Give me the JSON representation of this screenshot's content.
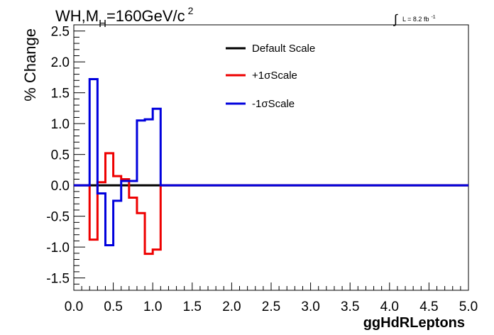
{
  "chart_data": {
    "type": "line",
    "title_main": "WH,M",
    "title_sub": "H",
    "title_rest": "=160GeV/c",
    "title_sup": "2",
    "lumi_main": "L = 8.2 fb",
    "lumi_sup": "-1",
    "xlabel": "ggHdRLeptons",
    "ylabel": "% Change",
    "xlim": [
      0.0,
      5.0
    ],
    "ylim": [
      -1.7,
      2.6
    ],
    "xticks": [
      "0.0",
      "0.5",
      "1.0",
      "1.5",
      "2.0",
      "2.5",
      "3.0",
      "3.5",
      "4.0",
      "4.5",
      "5.0"
    ],
    "yticks": [
      "-1.5",
      "-1.0",
      "-0.5",
      "0.0",
      "0.5",
      "1.0",
      "1.5",
      "2.0",
      "2.5"
    ],
    "bin_edges": [
      0.0,
      0.1,
      0.2,
      0.3,
      0.4,
      0.5,
      0.6,
      0.7,
      0.8,
      0.9,
      1.0,
      1.1,
      1.2,
      1.3,
      1.4,
      1.5,
      1.6,
      1.7,
      1.8,
      1.9,
      2.0,
      2.1,
      2.2,
      2.3,
      2.4,
      2.5,
      2.6,
      2.7,
      2.8,
      2.9,
      3.0,
      3.1,
      3.2,
      3.3,
      3.4,
      3.5,
      3.6,
      3.7,
      3.8,
      3.9,
      4.0,
      4.1,
      4.2,
      4.3,
      4.4,
      4.5,
      4.6,
      4.7,
      4.8,
      4.9,
      5.0
    ],
    "series": [
      {
        "name": "Default Scale",
        "color": "#000000",
        "values": [
          0,
          0,
          0,
          0,
          0,
          0,
          0,
          0,
          0,
          0,
          0,
          0,
          0,
          0,
          0,
          0,
          0,
          0,
          0,
          0,
          0,
          0,
          0,
          0,
          0,
          0,
          0,
          0,
          0,
          0,
          0,
          0,
          0,
          0,
          0,
          0,
          0,
          0,
          0,
          0,
          0,
          0,
          0,
          0,
          0,
          0,
          0,
          0,
          0,
          0
        ]
      },
      {
        "name": "+1σScale",
        "color": "#ee0000",
        "values": [
          0,
          0,
          -0.88,
          0.05,
          0.52,
          0.15,
          0.1,
          -0.2,
          -0.45,
          -1.11,
          -1.04,
          0,
          0,
          0,
          0,
          0,
          0,
          0,
          0,
          0,
          0,
          0,
          0,
          0,
          0,
          0,
          0,
          0,
          0,
          0,
          0,
          0,
          0,
          0,
          0,
          0,
          0,
          0,
          0,
          0,
          0,
          0,
          0,
          0,
          0,
          0,
          0,
          0,
          0,
          0
        ]
      },
      {
        "name": "-1σScale",
        "color": "#0000dd",
        "values": [
          0,
          0,
          1.72,
          -0.13,
          -0.97,
          -0.25,
          0.07,
          0.07,
          1.05,
          1.07,
          1.24,
          0,
          0,
          0,
          0,
          0,
          0,
          0,
          0,
          0,
          0,
          0,
          0,
          0,
          0,
          0,
          0,
          0,
          0,
          0,
          0,
          0,
          0,
          0,
          0,
          0,
          0,
          0,
          0,
          0,
          0,
          0,
          0,
          0,
          0,
          0,
          0,
          0,
          0,
          0
        ]
      }
    ],
    "legend": "top-center"
  }
}
